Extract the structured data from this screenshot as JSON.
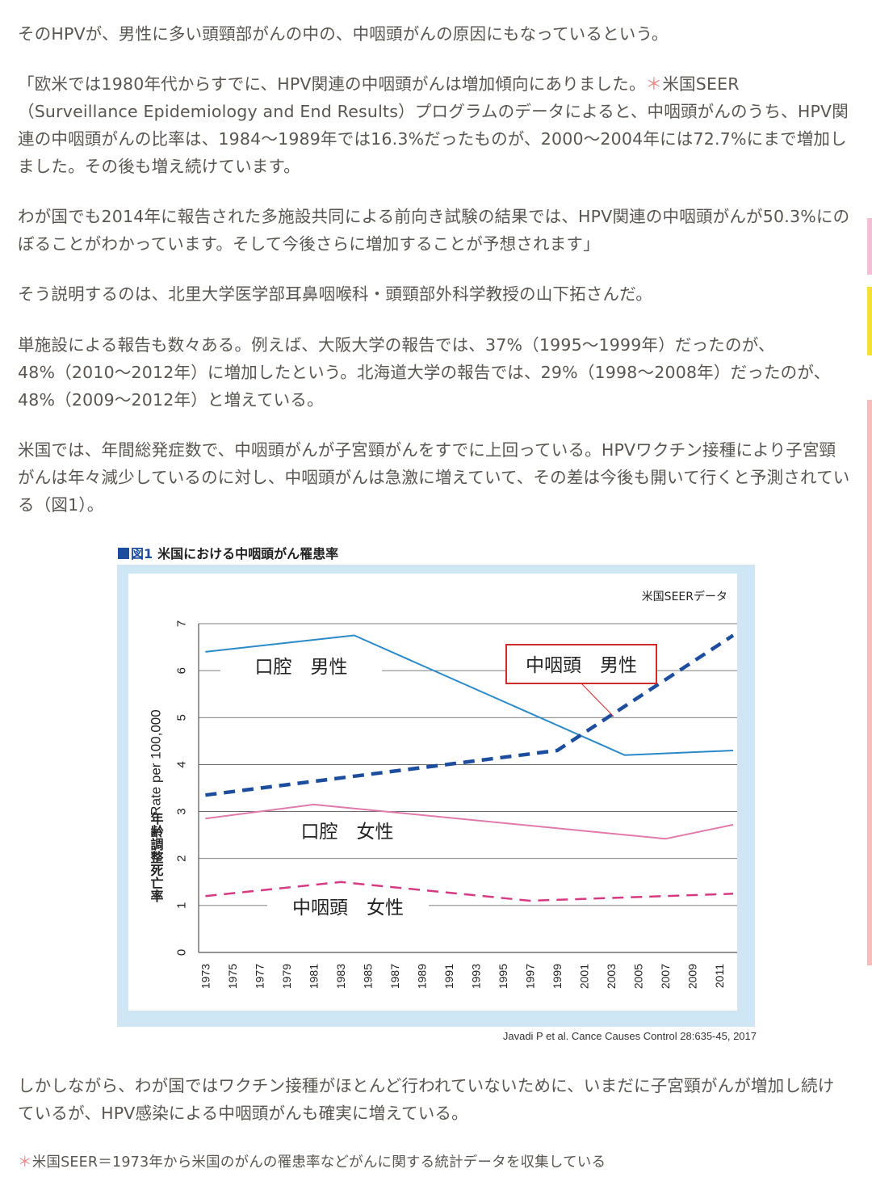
{
  "article": {
    "p1": "そのHPVが、男性に多い頭頸部がんの中の、中咽頭がんの原因にもなっているという。",
    "p2_before": "「欧米では1980年代からすでに、HPV関連の中咽頭がんは増加傾向にありました。",
    "p2_star": "＊",
    "p2_after": "米国SEER（Surveillance Epidemiology and End Results）プログラムのデータによると、中咽頭がんのうち、HPV関連の中咽頭がんの比率は、1984〜1989年では16.3%だったものが、2000〜2004年には72.7%にまで増加しました。その後も増え続けています。",
    "p3": "わが国でも2014年に報告された多施設共同による前向き試験の結果では、HPV関連の中咽頭がんが50.3%にのぼることがわかっています。そして今後さらに増加することが予想されます」",
    "p4": "そう説明するのは、北里大学医学部耳鼻咽喉科・頭頸部外科学教授の山下拓さんだ。",
    "p5": "単施設による報告も数々ある。例えば、大阪大学の報告では、37%（1995〜1999年）だったのが、48%（2010〜2012年）に増加したという。北海道大学の報告では、29%（1998〜2008年）だったのが、48%（2009〜2012年）と増えている。",
    "p6": "米国では、年間総発症数で、中咽頭がんが子宮頸がんをすでに上回っている。HPVワクチン接種により子宮頸がんは年々減少しているのに対し、中咽頭がんは急激に増えていて、その差は今後も開いて行くと予測されている（図1）。",
    "p7": "しかしながら、わが国ではワクチン接種がほとんど行われていないために、いまだに子宮頸がんが増加し続けているが、HPV感染による中咽頭がんも確実に増えている。",
    "footnote_star": "＊",
    "footnote": "米国SEER＝1973年から米国のがんの罹患率などがんに関する統計データを収集している"
  },
  "figure": {
    "fig_no": "図1",
    "title": "米国における中咽頭がん罹患率",
    "source": "Javadi P et al. Cance Causes Control 28:635-45, 2017"
  },
  "colors": {
    "text": "#5a5550",
    "accent_star": "#e88a8a",
    "chart_bg": "#cfe6f4",
    "oral_male": "#2a8ac8",
    "orophar_male": "#1d4e9e",
    "oral_female": "#e07aaa",
    "orophar_female": "#d63a82",
    "highlight_box": "#d22a2a"
  },
  "chart_data": {
    "type": "line",
    "note_label": "米国SEERデータ",
    "ylabel_en": "Rate per 100,000",
    "ylabel_ja": "年齢調整死亡率",
    "ylim": [
      0,
      7
    ],
    "yticks": [
      0,
      1,
      2,
      3,
      4,
      5,
      6,
      7
    ],
    "categories": [
      "1973",
      "1975",
      "1977",
      "1979",
      "1981",
      "1983",
      "1985",
      "1987",
      "1989",
      "1991",
      "1993",
      "1995",
      "1997",
      "1999",
      "2001",
      "2003",
      "2005",
      "2007",
      "2009",
      "2011"
    ],
    "grid": "horizontal",
    "series": [
      {
        "name": "口腔　男性",
        "style": "solid",
        "color": "#2a8ac8",
        "points": [
          [
            1973,
            6.4
          ],
          [
            1984,
            6.75
          ],
          [
            2004,
            4.2
          ],
          [
            2012,
            4.3
          ]
        ]
      },
      {
        "name": "中咽頭　男性",
        "style": "dashed",
        "color": "#1d4e9e",
        "points": [
          [
            1973,
            3.35
          ],
          [
            1999,
            4.3
          ],
          [
            2012,
            6.75
          ]
        ]
      },
      {
        "name": "口腔　女性",
        "style": "solid",
        "color": "#e07aaa",
        "points": [
          [
            1973,
            2.85
          ],
          [
            1981,
            3.15
          ],
          [
            2007,
            2.42
          ],
          [
            2012,
            2.72
          ]
        ]
      },
      {
        "name": "中咽頭　女性",
        "style": "dashed",
        "color": "#d63a82",
        "points": [
          [
            1973,
            1.2
          ],
          [
            1983,
            1.5
          ],
          [
            1997,
            1.1
          ],
          [
            2012,
            1.25
          ]
        ]
      }
    ]
  }
}
